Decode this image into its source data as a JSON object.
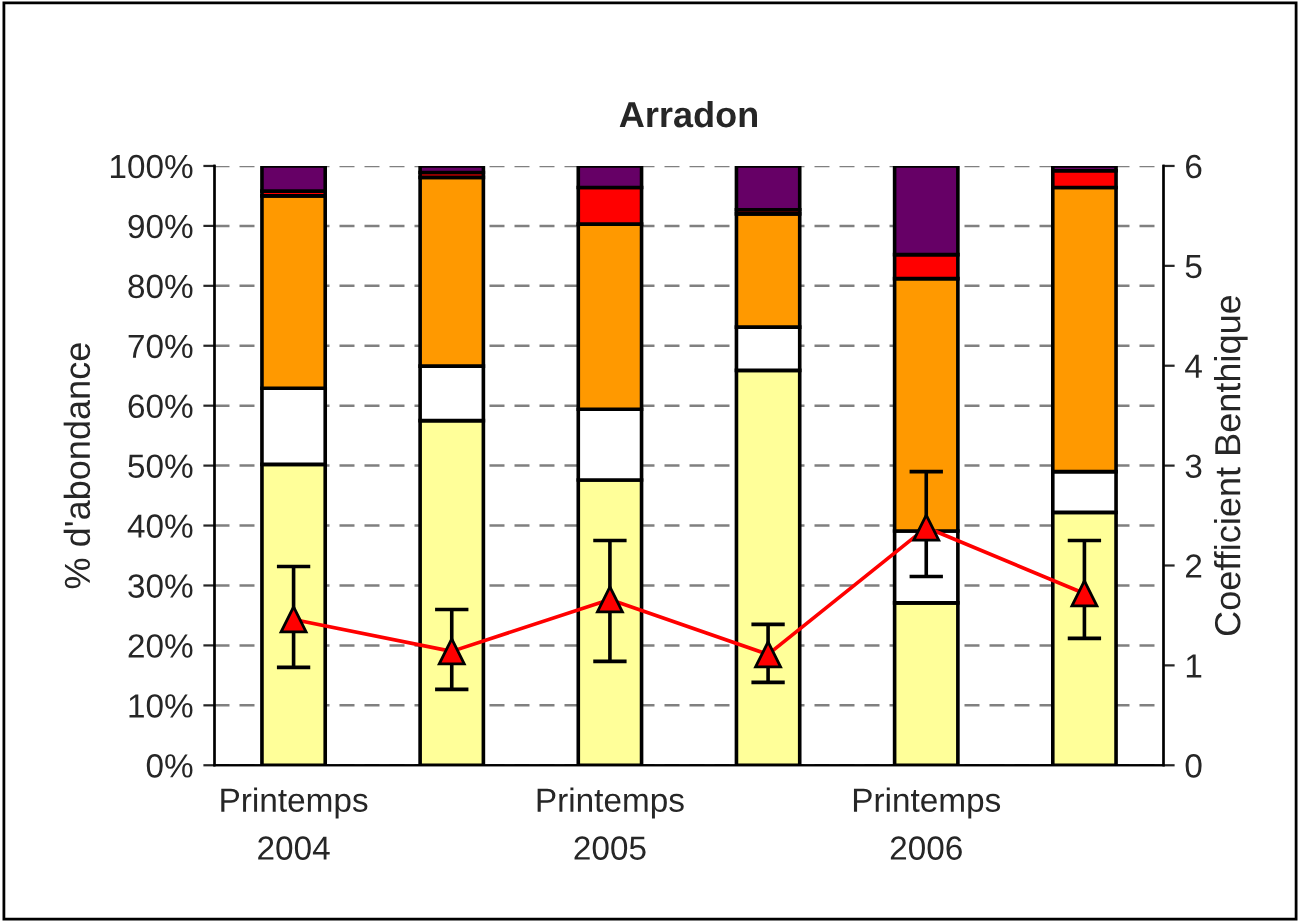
{
  "chart_data": {
    "type": "bar",
    "title": "Arradon",
    "ylabel": "% d'abondance",
    "y2label": "Coefficient Benthique",
    "categories": [
      "Printemps\n2004",
      null,
      "Printemps\n2005",
      null,
      "Printemps\n2006",
      null
    ],
    "stacked": true,
    "series": [
      {
        "color": "#ffff99",
        "values": [
          50.2,
          57.5,
          47.6,
          65.9,
          27.1,
          42.2
        ]
      },
      {
        "color": "#ffffff",
        "values": [
          12.7,
          9.1,
          11.8,
          7.2,
          12.0,
          6.8
        ]
      },
      {
        "color": "#ff9900",
        "values": [
          32.1,
          31.5,
          30.9,
          18.9,
          42.1,
          47.4
        ]
      },
      {
        "color": "#ff0000",
        "values": [
          0.8,
          0.8,
          6.1,
          0.7,
          4.0,
          2.8
        ]
      },
      {
        "color": "#660066",
        "values": [
          4.2,
          1.1,
          3.6,
          7.3,
          14.8,
          0.8
        ]
      },
      {
        "type": "line",
        "axis": "y2",
        "color": "#ff0000",
        "marker": "triangle",
        "line_style": "solid",
        "values": [
          1.46,
          1.14,
          1.66,
          1.11,
          2.38,
          1.72
        ],
        "errors": [
          [
            0.98,
            1.99
          ],
          [
            0.76,
            1.56
          ],
          [
            1.04,
            2.25
          ],
          [
            0.83,
            1.41
          ],
          [
            1.89,
            2.94
          ],
          [
            1.27,
            2.25
          ]
        ]
      }
    ],
    "ylim": [
      0,
      100
    ],
    "yticks": [
      {
        "value": 0,
        "label": "0%"
      },
      {
        "value": 10,
        "label": "10%"
      },
      {
        "value": 20,
        "label": "20%"
      },
      {
        "value": 30,
        "label": "30%"
      },
      {
        "value": 40,
        "label": "40%"
      },
      {
        "value": 50,
        "label": "50%"
      },
      {
        "value": 60,
        "label": "60%"
      },
      {
        "value": 70,
        "label": "70%"
      },
      {
        "value": 80,
        "label": "80%"
      },
      {
        "value": 90,
        "label": "90%"
      },
      {
        "value": 100,
        "label": "100%"
      }
    ],
    "y2lim": [
      0,
      6
    ],
    "y2ticks": [
      0,
      1,
      2,
      3,
      4,
      5,
      6
    ],
    "grid": "y",
    "legend": false
  }
}
